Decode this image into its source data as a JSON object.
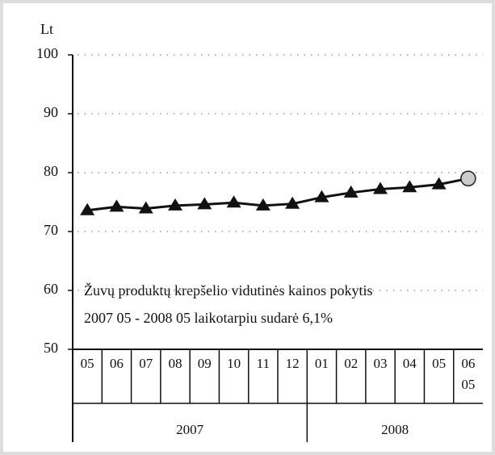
{
  "chart_data": {
    "type": "line",
    "ylabel": "Lt",
    "categories": [
      "05",
      "06",
      "07",
      "08",
      "09",
      "10",
      "11",
      "12",
      "01",
      "02",
      "03",
      "04",
      "05",
      "06 05"
    ],
    "groups": [
      {
        "label": "2007",
        "span": 8
      },
      {
        "label": "2008",
        "span": 6
      }
    ],
    "series": [
      {
        "color": "#111111",
        "values": [
          73.6,
          74.2,
          73.9,
          74.4,
          74.6,
          74.9,
          74.4,
          74.7,
          75.8,
          76.6,
          77.2,
          77.5,
          78.0,
          79.0
        ]
      }
    ],
    "ylim": [
      50,
      100
    ],
    "yticks": [
      50,
      60,
      70,
      80,
      90,
      100
    ],
    "grid": true,
    "annotation": [
      "Žuvų produktų krepšelio vidutinės kainos pokytis",
      "2007 05 - 2008 05 laikotarpiu sudarė  6,1%"
    ]
  }
}
